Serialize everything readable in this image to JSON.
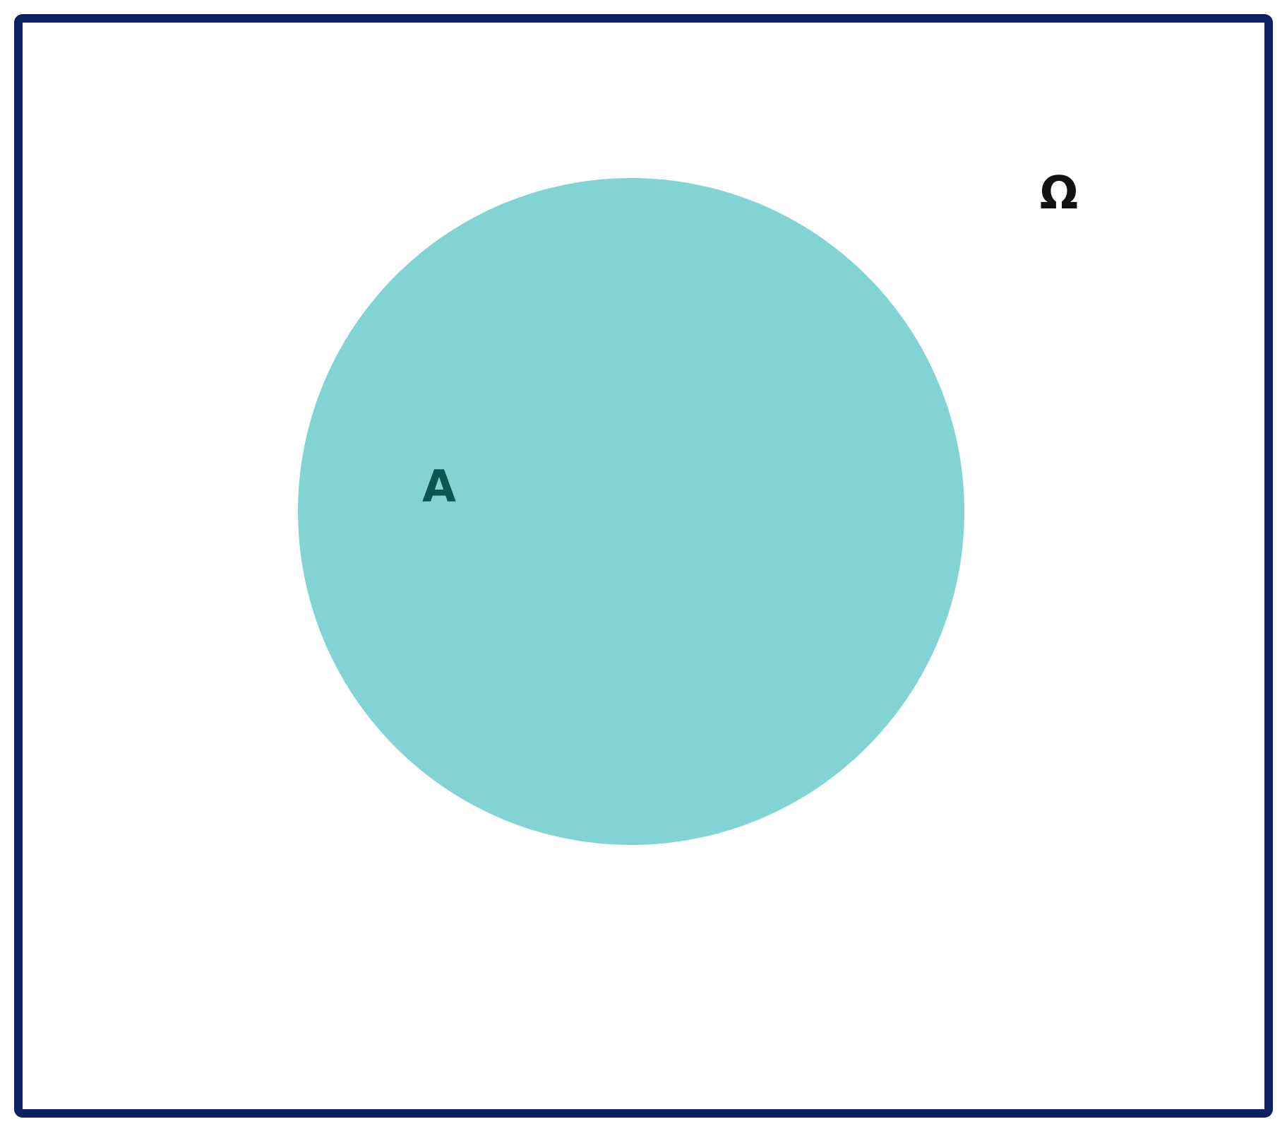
{
  "diagram": {
    "type": "venn",
    "universe": {
      "label": "Ω",
      "border_color": "#0b2161",
      "fill_color": "#ffffff"
    },
    "sets": [
      {
        "label": "A",
        "fill_color": "#82d4d4",
        "label_color": "#0b5552"
      }
    ],
    "label_color": "#111111"
  }
}
